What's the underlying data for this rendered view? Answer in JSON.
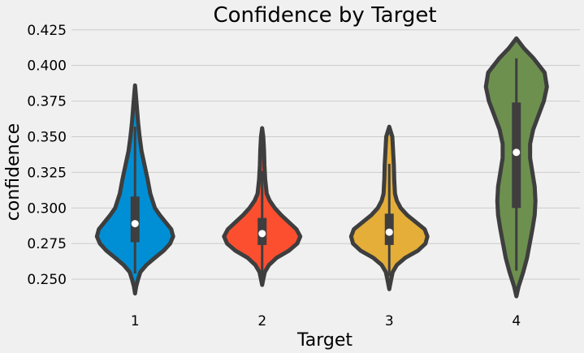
{
  "chart_data": {
    "type": "violin",
    "title": "Confidence by Target",
    "xlabel": "Target",
    "ylabel": "confidence",
    "categories": [
      "1",
      "2",
      "3",
      "4"
    ],
    "colors": [
      "#008fd5",
      "#fc4f30",
      "#e5ae38",
      "#6d904f"
    ],
    "ylim": [
      0.2375,
      0.43
    ],
    "yticks": [
      "0.250",
      "0.275",
      "0.300",
      "0.325",
      "0.350",
      "0.375",
      "0.400",
      "0.425"
    ],
    "grid": true,
    "violins": [
      {
        "category": "1",
        "median": 0.289,
        "q1": 0.276,
        "q3": 0.308,
        "whisker_low": 0.254,
        "whisker_high": 0.357,
        "profile": [
          [
            0.24,
            0.0
          ],
          [
            0.245,
            0.03
          ],
          [
            0.25,
            0.08
          ],
          [
            0.255,
            0.14
          ],
          [
            0.26,
            0.3
          ],
          [
            0.265,
            0.52
          ],
          [
            0.27,
            0.75
          ],
          [
            0.275,
            0.92
          ],
          [
            0.28,
            1.0
          ],
          [
            0.285,
            0.95
          ],
          [
            0.29,
            0.8
          ],
          [
            0.295,
            0.65
          ],
          [
            0.3,
            0.52
          ],
          [
            0.31,
            0.4
          ],
          [
            0.32,
            0.33
          ],
          [
            0.33,
            0.25
          ],
          [
            0.34,
            0.17
          ],
          [
            0.35,
            0.12
          ],
          [
            0.36,
            0.08
          ],
          [
            0.37,
            0.05
          ],
          [
            0.38,
            0.02
          ],
          [
            0.386,
            0.0
          ]
        ]
      },
      {
        "category": "2",
        "median": 0.282,
        "q1": 0.274,
        "q3": 0.293,
        "whisker_low": 0.252,
        "whisker_high": 0.326,
        "profile": [
          [
            0.246,
            0.0
          ],
          [
            0.25,
            0.03
          ],
          [
            0.255,
            0.07
          ],
          [
            0.26,
            0.18
          ],
          [
            0.265,
            0.38
          ],
          [
            0.27,
            0.7
          ],
          [
            0.275,
            0.92
          ],
          [
            0.28,
            1.0
          ],
          [
            0.285,
            0.9
          ],
          [
            0.29,
            0.7
          ],
          [
            0.295,
            0.5
          ],
          [
            0.3,
            0.33
          ],
          [
            0.305,
            0.2
          ],
          [
            0.31,
            0.12
          ],
          [
            0.32,
            0.08
          ],
          [
            0.33,
            0.06
          ],
          [
            0.34,
            0.05
          ],
          [
            0.35,
            0.03
          ],
          [
            0.356,
            0.0
          ]
        ]
      },
      {
        "category": "3",
        "median": 0.283,
        "q1": 0.274,
        "q3": 0.296,
        "whisker_low": 0.252,
        "whisker_high": 0.331,
        "profile": [
          [
            0.243,
            0.0
          ],
          [
            0.25,
            0.05
          ],
          [
            0.255,
            0.09
          ],
          [
            0.26,
            0.2
          ],
          [
            0.265,
            0.42
          ],
          [
            0.27,
            0.75
          ],
          [
            0.275,
            0.95
          ],
          [
            0.28,
            1.0
          ],
          [
            0.285,
            0.93
          ],
          [
            0.29,
            0.7
          ],
          [
            0.295,
            0.47
          ],
          [
            0.3,
            0.3
          ],
          [
            0.305,
            0.2
          ],
          [
            0.31,
            0.15
          ],
          [
            0.32,
            0.13
          ],
          [
            0.33,
            0.12
          ],
          [
            0.34,
            0.1
          ],
          [
            0.35,
            0.08
          ],
          [
            0.357,
            0.0
          ]
        ]
      },
      {
        "category": "4",
        "median": 0.339,
        "q1": 0.3,
        "q3": 0.374,
        "whisker_low": 0.256,
        "whisker_high": 0.405,
        "profile": [
          [
            0.238,
            0.0
          ],
          [
            0.245,
            0.06
          ],
          [
            0.255,
            0.18
          ],
          [
            0.265,
            0.28
          ],
          [
            0.275,
            0.35
          ],
          [
            0.285,
            0.42
          ],
          [
            0.295,
            0.48
          ],
          [
            0.305,
            0.5
          ],
          [
            0.315,
            0.48
          ],
          [
            0.325,
            0.42
          ],
          [
            0.335,
            0.36
          ],
          [
            0.345,
            0.36
          ],
          [
            0.355,
            0.44
          ],
          [
            0.365,
            0.58
          ],
          [
            0.375,
            0.72
          ],
          [
            0.385,
            0.8
          ],
          [
            0.395,
            0.74
          ],
          [
            0.405,
            0.45
          ],
          [
            0.412,
            0.2
          ],
          [
            0.419,
            0.0
          ]
        ]
      }
    ]
  }
}
